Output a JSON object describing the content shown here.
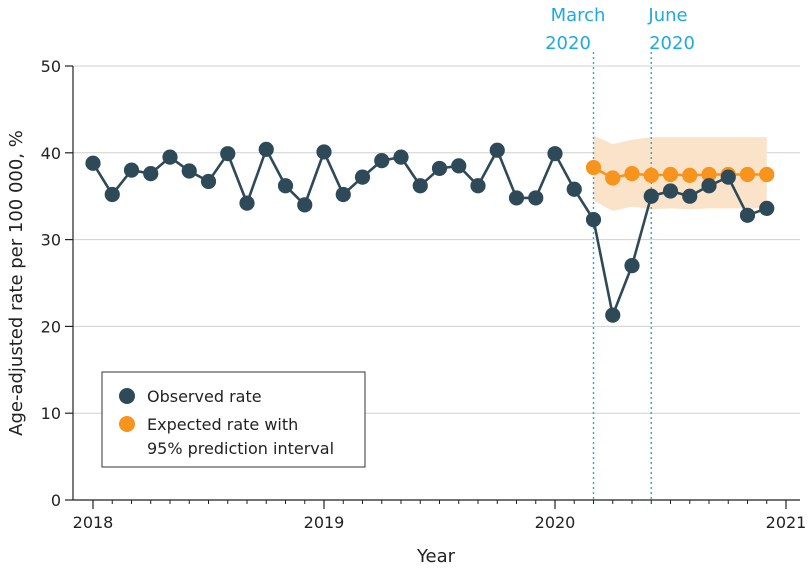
{
  "chart_data": {
    "type": "line",
    "xlabel": "Year",
    "ylabel": "Age-adjusted rate per 100 000, %",
    "ylim": [
      0,
      50
    ],
    "yticks": [
      "0",
      "10",
      "20",
      "30",
      "40",
      "50"
    ],
    "xticks": [
      "2018",
      "2019",
      "2020",
      "2021"
    ],
    "grid": "horizontal",
    "legend": {
      "placement": "bottom-left",
      "observed_label": "Observed rate",
      "expected_line1": "Expected rate with",
      "expected_line2": "95% prediction interval"
    },
    "annotations": [
      {
        "line1": "March",
        "line2": "2020",
        "x": "2020-03"
      },
      {
        "line1": "June",
        "line2": "2020",
        "x": "2020-06"
      }
    ],
    "colors": {
      "observed": "#2e4a59",
      "expected": "#f7941d",
      "interval": "#fbe3c9",
      "annotation": "#1eaadf",
      "grid": "#d0d0d0",
      "axis": "#222222"
    },
    "series": [
      {
        "name": "Observed rate",
        "x": [
          "2018-01",
          "2018-02",
          "2018-03",
          "2018-04",
          "2018-05",
          "2018-06",
          "2018-07",
          "2018-08",
          "2018-09",
          "2018-10",
          "2018-11",
          "2018-12",
          "2019-01",
          "2019-02",
          "2019-03",
          "2019-04",
          "2019-05",
          "2019-06",
          "2019-07",
          "2019-08",
          "2019-09",
          "2019-10",
          "2019-11",
          "2019-12",
          "2020-01",
          "2020-02",
          "2020-03",
          "2020-04",
          "2020-05",
          "2020-06",
          "2020-07",
          "2020-08",
          "2020-09",
          "2020-10",
          "2020-11",
          "2020-12"
        ],
        "values": [
          38.8,
          35.2,
          38.0,
          37.6,
          39.5,
          37.9,
          36.7,
          39.9,
          34.2,
          40.4,
          36.2,
          34.0,
          40.1,
          35.2,
          37.2,
          39.1,
          39.5,
          36.2,
          38.2,
          38.5,
          36.2,
          40.3,
          34.8,
          34.8,
          39.9,
          35.8,
          32.3,
          21.3,
          27.0,
          35.0,
          35.6,
          35.0,
          36.2,
          37.2,
          32.8,
          33.6
        ]
      },
      {
        "name": "Expected rate with 95% prediction interval",
        "x": [
          "2020-03",
          "2020-04",
          "2020-05",
          "2020-06",
          "2020-07",
          "2020-08",
          "2020-09",
          "2020-10",
          "2020-11",
          "2020-12"
        ],
        "values": [
          38.3,
          37.1,
          37.6,
          37.4,
          37.5,
          37.4,
          37.5,
          37.5,
          37.5,
          37.5
        ],
        "lower": [
          34.5,
          33.3,
          33.8,
          33.5,
          33.6,
          33.5,
          33.6,
          33.6,
          33.6,
          33.6
        ],
        "upper": [
          42.0,
          41.0,
          41.5,
          41.8,
          41.8,
          41.8,
          41.8,
          41.8,
          41.8,
          41.8
        ]
      }
    ]
  }
}
